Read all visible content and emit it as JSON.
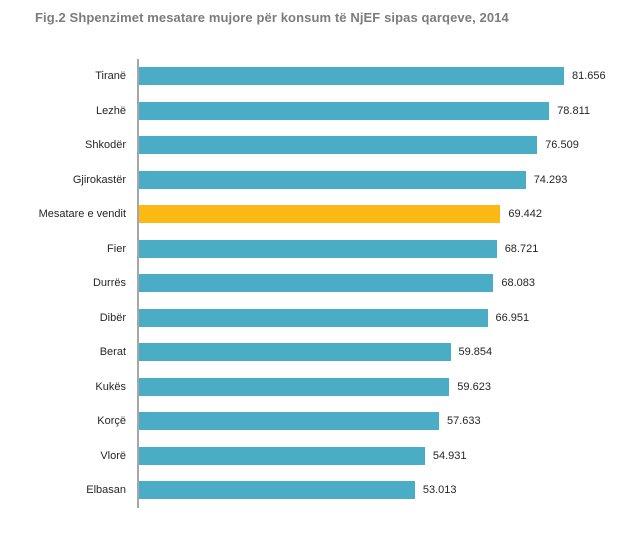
{
  "title": "Fig.2 Shpenzimet mesatare mujore për konsum të NjEF sipas qarqeve, 2014",
  "colors": {
    "bar": "#4BACC6",
    "highlight_bar": "#FCB813",
    "axis_line": "#A6A6A6",
    "title_text": "#7C7C7C",
    "label_text": "#262626",
    "background": "#FFFFFF"
  },
  "chart_data": {
    "type": "bar",
    "orientation": "horizontal",
    "title": "Fig.2 Shpenzimet mesatare mujore për konsum të NjEF sipas qarqeve, 2014",
    "xlabel": "",
    "ylabel": "",
    "grid": false,
    "legend": false,
    "xlim": [
      0,
      85000
    ],
    "categories": [
      "Tiranë",
      "Lezhë",
      "Shkodër",
      "Gjirokastër",
      "Mesatare e vendit",
      "Fier",
      "Durrës",
      "Dibër",
      "Berat",
      "Kukës",
      "Korçë",
      "Vlorë",
      "Elbasan"
    ],
    "values": [
      81656,
      78811,
      76509,
      74293,
      69442,
      68721,
      68083,
      66951,
      59854,
      59623,
      57633,
      54931,
      53013
    ],
    "value_labels": [
      "81.656",
      "78.811",
      "76.509",
      "74.293",
      "69.442",
      "68.721",
      "68.083",
      "66.951",
      "59.854",
      "59.623",
      "57.633",
      "54.931",
      "53.013"
    ],
    "highlight_category": "Mesatare e vendit",
    "highlight_index": 4
  }
}
